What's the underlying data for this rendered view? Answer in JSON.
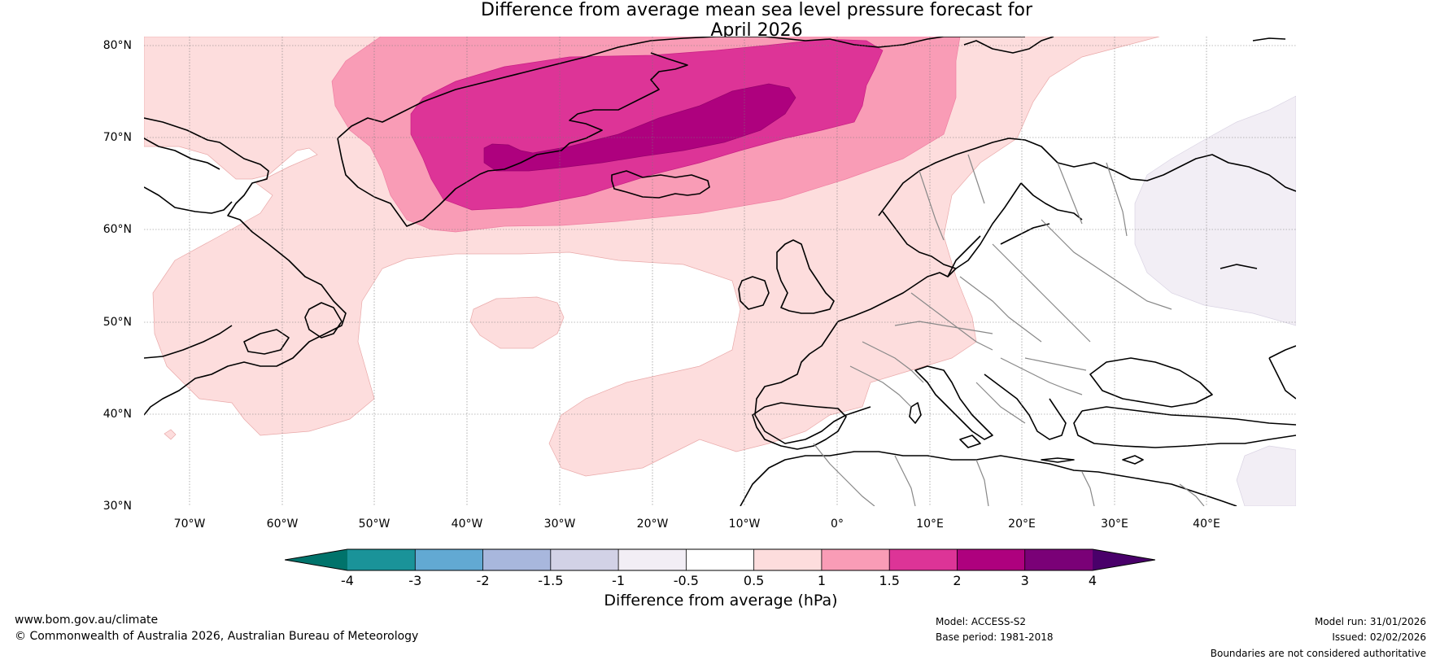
{
  "title": {
    "line1": "Difference from average mean sea level pressure forecast for",
    "line2": "April 2026"
  },
  "map": {
    "latitude_labels": [
      "80°N",
      "70°N",
      "60°N",
      "50°N",
      "40°N",
      "30°N"
    ],
    "longitude_labels": [
      "70°W",
      "60°W",
      "50°W",
      "40°W",
      "30°W",
      "20°W",
      "10°W",
      "0°",
      "10°E",
      "20°E",
      "30°E",
      "40°E"
    ],
    "extent": {
      "lon_min": -75,
      "lon_max": 50,
      "lat_min": 30,
      "lat_max": 81
    },
    "anomaly_regions": [
      {
        "name": "north-atlantic-positive",
        "range": "0.5 to 1 hPa"
      },
      {
        "name": "greenland-iceland-positive",
        "range": "1 to 1.5 hPa"
      },
      {
        "name": "greenland-iceland-strong",
        "range": "1.5 to 2 hPa"
      },
      {
        "name": "denmark-strait-peak",
        "range": "2 to 3 hPa"
      },
      {
        "name": "eastern-europe-negative",
        "range": "-1 to -0.5 hPa"
      }
    ]
  },
  "colorbar": {
    "ticks": [
      "-4",
      "-3",
      "-2",
      "-1.5",
      "-1",
      "-0.5",
      "0.5",
      "1",
      "1.5",
      "2",
      "3",
      "4"
    ],
    "colors": [
      "#1a9399",
      "#62a9d3",
      "#a8b7dd",
      "#d2d2e6",
      "#f2eef5",
      "#ffffff",
      "#fddddd",
      "#f99cb6",
      "#dd3497",
      "#ae017e",
      "#7a0177"
    ],
    "under_color": "#00736b",
    "over_color": "#49006a",
    "label": "Difference from average (hPa)"
  },
  "footer": {
    "website": "www.bom.gov.au/climate",
    "copyright": "© Commonwealth of Australia 2026, Australian Bureau of Meteorology",
    "model": "Model: ACCESS-S2",
    "base_period": "Base period: 1981-2018",
    "model_run": "Model run: 31/01/2026",
    "issued": "Issued: 02/02/2026",
    "disclaimer": "Boundaries are not considered authoritative"
  }
}
